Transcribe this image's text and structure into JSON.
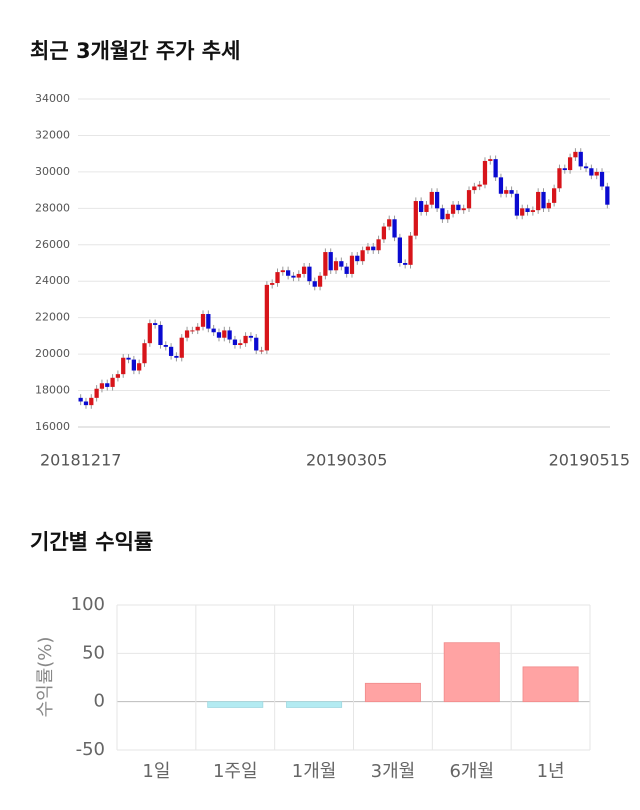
{
  "chart_data": [
    {
      "type": "candlestick",
      "title": "최근 3개월간 주가 추세",
      "categories": [
        "20181217",
        null,
        null,
        null,
        null,
        null,
        null,
        null,
        null,
        null,
        null,
        null,
        null,
        null,
        null,
        null,
        null,
        null,
        null,
        null,
        null,
        null,
        null,
        null,
        null,
        null,
        null,
        null,
        null,
        null,
        null,
        null,
        null,
        null,
        null,
        null,
        null,
        null,
        null,
        null,
        null,
        null,
        null,
        null,
        null,
        null,
        null,
        null,
        null,
        null,
        "20190305",
        null,
        null,
        null,
        null,
        null,
        null,
        null,
        null,
        null,
        null,
        null,
        null,
        null,
        null,
        null,
        null,
        null,
        null,
        null,
        null,
        null,
        null,
        null,
        null,
        null,
        null,
        null,
        null,
        null,
        null,
        null,
        null,
        null,
        null,
        null,
        null,
        null,
        null,
        null,
        null,
        null,
        null,
        null,
        null,
        null,
        null,
        null,
        null,
        "20190515"
      ],
      "open": [
        17600,
        17400,
        17200,
        17600,
        18100,
        18400,
        18200,
        18700,
        18900,
        19800,
        19700,
        19100,
        19500,
        20600,
        21700,
        21600,
        20500,
        20400,
        19900,
        19800,
        20900,
        21300,
        21300,
        21500,
        22200,
        21400,
        21200,
        20900,
        21300,
        20800,
        20500,
        20600,
        21000,
        20900,
        20200,
        20200,
        23800,
        23900,
        24500,
        24600,
        24300,
        24200,
        24400,
        24800,
        24000,
        23700,
        24300,
        25600,
        24600,
        25100,
        24800,
        24400,
        25400,
        25100,
        25700,
        25900,
        25700,
        26300,
        27000,
        27400,
        26400,
        25000,
        24900,
        26500,
        28400,
        27800,
        28200,
        28900,
        28000,
        27400,
        27700,
        28200,
        27900,
        28000,
        29000,
        29200,
        29300,
        30600,
        30700,
        29700,
        28800,
        29000,
        28800,
        27600,
        28000,
        27800,
        27900,
        28900,
        28000,
        28300,
        29100,
        30200,
        30100,
        30800,
        31100,
        30300,
        30200,
        29800,
        30000,
        29200
      ],
      "high": [
        17800,
        17600,
        17800,
        18300,
        18600,
        18600,
        18900,
        19100,
        20000,
        20000,
        19900,
        19700,
        20800,
        21900,
        21900,
        21800,
        20700,
        20600,
        20100,
        21100,
        21500,
        21500,
        21700,
        22400,
        22400,
        21600,
        21400,
        21500,
        21500,
        21000,
        20800,
        21200,
        21200,
        21100,
        20400,
        24000,
        24100,
        24700,
        24800,
        24800,
        24500,
        24600,
        25000,
        25000,
        24200,
        24500,
        25800,
        25800,
        25300,
        25300,
        25000,
        25600,
        25600,
        25900,
        26100,
        26100,
        26500,
        27200,
        27600,
        27600,
        26600,
        25200,
        26700,
        28600,
        28600,
        28400,
        29100,
        29100,
        28200,
        27900,
        28400,
        28400,
        28200,
        29200,
        29400,
        29500,
        30800,
        30900,
        30900,
        29900,
        29200,
        29200,
        29000,
        28200,
        28200,
        28100,
        29100,
        29100,
        28500,
        29300,
        30400,
        30400,
        31000,
        31300,
        31300,
        30500,
        30400,
        30200,
        30200,
        29400
      ],
      "low": [
        17200,
        17000,
        17000,
        17400,
        17900,
        18000,
        18000,
        18500,
        18700,
        19500,
        18900,
        18900,
        19300,
        20400,
        21400,
        20300,
        20200,
        19700,
        19600,
        19600,
        20700,
        21100,
        21100,
        21300,
        21200,
        21000,
        20700,
        20700,
        20600,
        20300,
        20300,
        20400,
        20700,
        20000,
        20000,
        20000,
        23600,
        23700,
        24300,
        24100,
        24000,
        24000,
        24200,
        23800,
        23500,
        23500,
        24100,
        24400,
        24400,
        24600,
        24200,
        24200,
        24900,
        24900,
        25500,
        25500,
        25500,
        26100,
        26800,
        26200,
        24800,
        24700,
        24700,
        26300,
        27600,
        27600,
        28000,
        27800,
        27200,
        27200,
        27500,
        27700,
        27700,
        27800,
        28800,
        29000,
        29100,
        30400,
        29500,
        28600,
        28600,
        28600,
        27400,
        27400,
        27600,
        27600,
        27700,
        27800,
        27800,
        28100,
        28900,
        29900,
        29900,
        30600,
        30100,
        30000,
        29600,
        29600,
        29000,
        28000
      ],
      "close": [
        17400,
        17200,
        17600,
        18100,
        18400,
        18200,
        18700,
        18900,
        19800,
        19700,
        19100,
        19500,
        20600,
        21700,
        21600,
        20500,
        20400,
        19900,
        19800,
        20900,
        21300,
        21300,
        21500,
        22200,
        21400,
        21200,
        20900,
        21300,
        20800,
        20500,
        20600,
        21000,
        20900,
        20200,
        20200,
        23800,
        23900,
        24500,
        24600,
        24300,
        24200,
        24400,
        24800,
        24000,
        23700,
        24300,
        25600,
        24600,
        25100,
        24800,
        24400,
        25400,
        25100,
        25700,
        25900,
        25700,
        26300,
        27000,
        27400,
        26400,
        25000,
        24900,
        26500,
        28400,
        27800,
        28200,
        28900,
        28000,
        27400,
        27700,
        28200,
        27900,
        28000,
        29000,
        29200,
        29300,
        30600,
        30700,
        29700,
        28800,
        29000,
        28800,
        27600,
        28000,
        27800,
        27900,
        28900,
        28000,
        28300,
        29100,
        30200,
        30100,
        30800,
        31100,
        30300,
        30200,
        29800,
        30000,
        29200,
        28200
      ],
      "up_color": "#d7141a",
      "down_color": "#0a0ad0",
      "ylim": [
        16000,
        34000
      ],
      "yticks": [
        16000,
        18000,
        20000,
        22000,
        24000,
        26000,
        28000,
        30000,
        32000,
        34000
      ],
      "grid": true
    },
    {
      "type": "bar",
      "title": "기간별 수익률",
      "ylabel": "수익률(%)",
      "categories": [
        "1일",
        "1주일",
        "1개월",
        "3개월",
        "6개월",
        "1년"
      ],
      "values": [
        0,
        -6,
        -6,
        19,
        61,
        36
      ],
      "positive_color": "#ffa3a3",
      "negative_color": "#b3ebf2",
      "ylim": [
        -50,
        100
      ],
      "yticks": [
        -50,
        0,
        50,
        100
      ],
      "grid": true
    }
  ]
}
